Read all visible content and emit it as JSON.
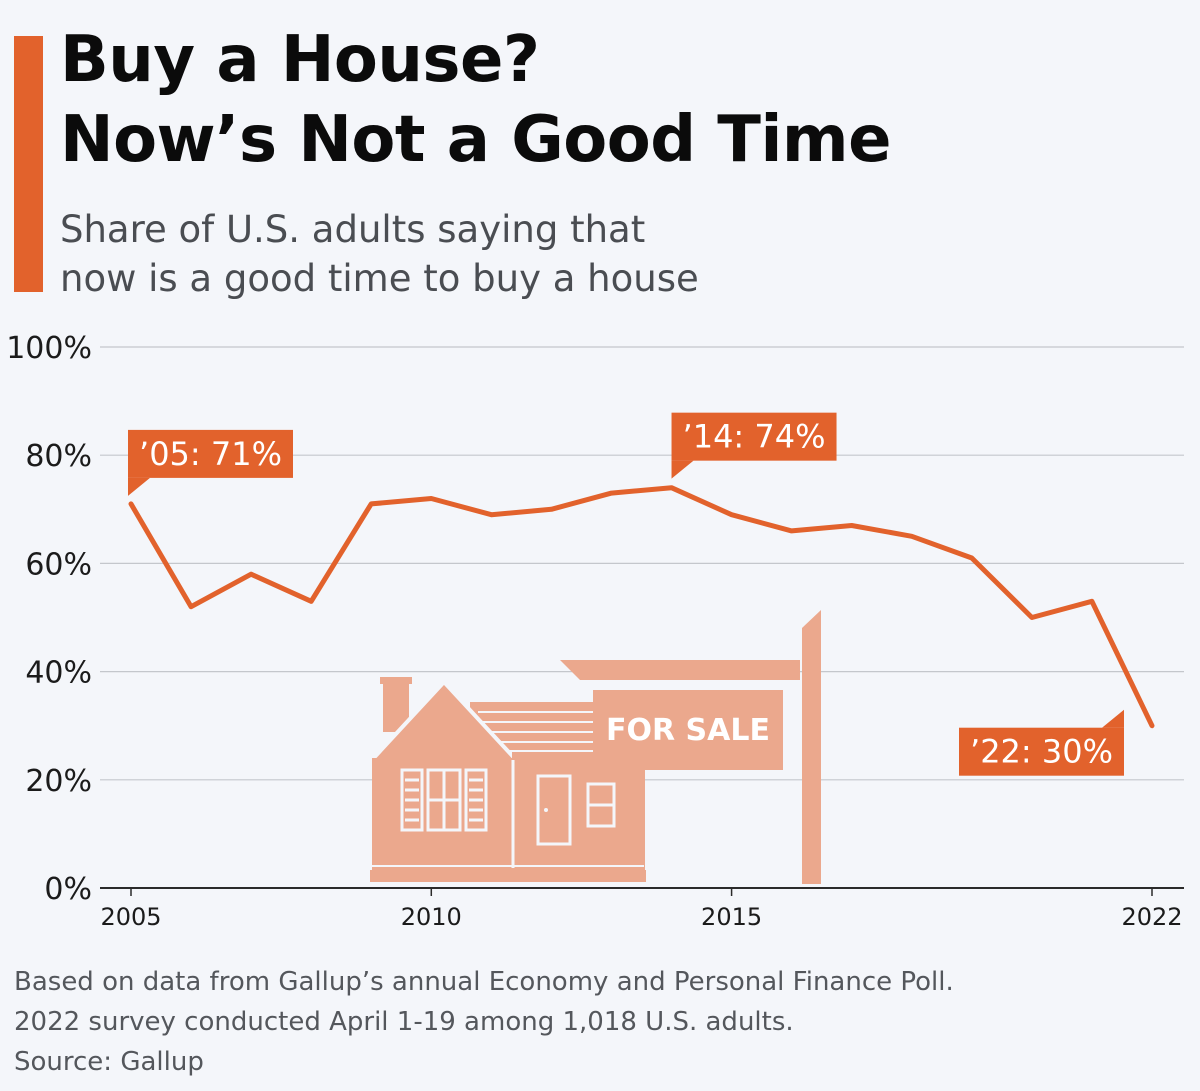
{
  "header": {
    "title_line1": "Buy a House?",
    "title_line2": "Now’s Not a Good Time",
    "subtitle_line1": "Share of U.S. adults saying that",
    "subtitle_line2": "now is a good time to buy a house"
  },
  "chart_data": {
    "type": "line",
    "x": [
      2005,
      2006,
      2007,
      2008,
      2009,
      2010,
      2011,
      2012,
      2013,
      2014,
      2015,
      2016,
      2017,
      2018,
      2019,
      2020,
      2021,
      2022
    ],
    "series": [
      {
        "name": "Good time to buy a house",
        "values": [
          71,
          52,
          58,
          53,
          71,
          72,
          69,
          70,
          73,
          74,
          69,
          66,
          67,
          65,
          61,
          50,
          53,
          30
        ],
        "color": "#e2622c"
      }
    ],
    "ylim": [
      0,
      100
    ],
    "yticks": [
      0,
      20,
      40,
      60,
      80,
      100
    ],
    "ytick_labels": [
      "0%",
      "20%",
      "40%",
      "60%",
      "80%",
      "100%"
    ],
    "xticks": [
      2005,
      2010,
      2015,
      2022
    ],
    "xtick_labels": [
      "2005",
      "2010",
      "2015",
      "2022"
    ],
    "grid": true,
    "annotations": [
      {
        "x": 2005,
        "y": 71,
        "text": "’05: 71%"
      },
      {
        "x": 2014,
        "y": 74,
        "text": "’14: 74%"
      },
      {
        "x": 2022,
        "y": 30,
        "text": "’22: 30%"
      }
    ],
    "sign_text": "FOR SALE",
    "xlabel": "",
    "ylabel": ""
  },
  "footer": {
    "note_line1": "Based on data from Gallup’s annual Economy and Personal Finance Poll.",
    "note_line2": "2022 survey conducted April 1-19 among 1,018 U.S. adults.",
    "source": "Source: Gallup"
  },
  "colors": {
    "accent": "#e2622c",
    "illustration": "#eba88d",
    "background": "#f4f6fa",
    "grid": "#c4c7cc"
  }
}
